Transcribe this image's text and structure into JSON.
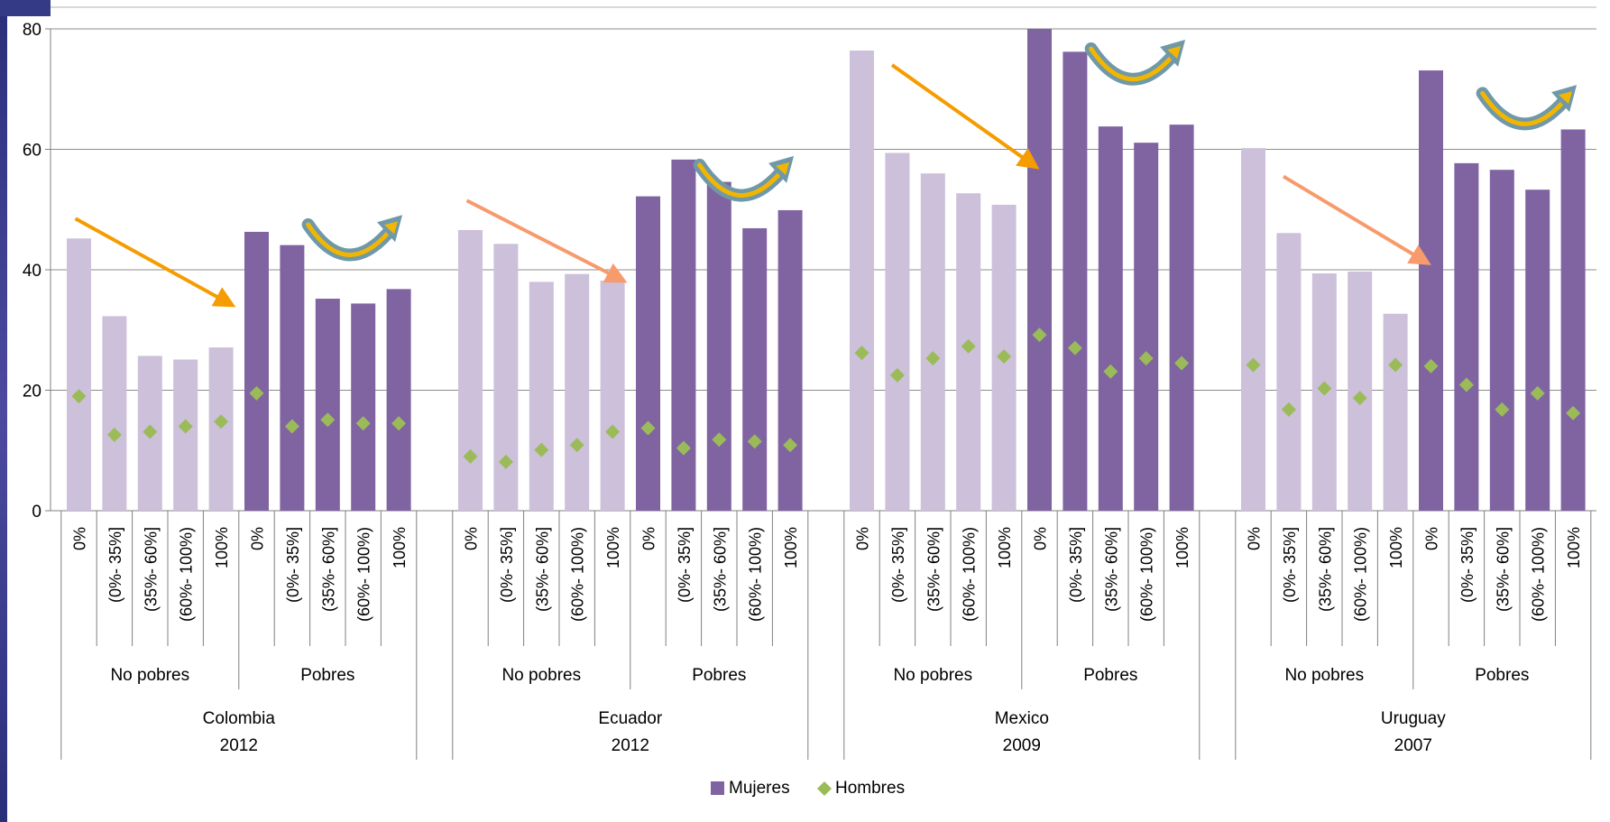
{
  "chart_data": {
    "type": "bar",
    "ylim": [
      0,
      80
    ],
    "yticks": [
      0,
      20,
      40,
      60,
      80
    ],
    "grid": true,
    "legend_position": "bottom",
    "series": [
      {
        "name": "Mujeres",
        "kind": "bar",
        "color": "#8064a2"
      },
      {
        "name": "Hombres",
        "kind": "marker",
        "color": "#9bbb59"
      }
    ],
    "countries": [
      {
        "name": "Colombia",
        "year": "2012",
        "groups": [
          {
            "label": "No pobres",
            "bars": [
              {
                "tick": "0%",
                "mujeres": 45.2,
                "hombres": 19
              },
              {
                "tick": "(0%- 35%]",
                "mujeres": 32.3,
                "hombres": 12.6
              },
              {
                "tick": "(35%- 60%]",
                "mujeres": 25.7,
                "hombres": 13.1
              },
              {
                "tick": "(60%- 100%)",
                "mujeres": 25.1,
                "hombres": 14
              },
              {
                "tick": "100%",
                "mujeres": 27.1,
                "hombres": 14.8
              }
            ]
          },
          {
            "label": "Pobres",
            "bars": [
              {
                "tick": "0%",
                "mujeres": 46.3,
                "hombres": 19.5
              },
              {
                "tick": "(0%- 35%]",
                "mujeres": 44.1,
                "hombres": 14
              },
              {
                "tick": "(35%- 60%]",
                "mujeres": 35.2,
                "hombres": 15.1
              },
              {
                "tick": "(60%- 100%)",
                "mujeres": 34.4,
                "hombres": 14.5
              },
              {
                "tick": "100%",
                "mujeres": 36.8,
                "hombres": 14.5
              }
            ]
          }
        ]
      },
      {
        "name": "Ecuador",
        "year": "2012",
        "groups": [
          {
            "label": "No pobres",
            "bars": [
              {
                "tick": "0%",
                "mujeres": 46.6,
                "hombres": 9
              },
              {
                "tick": "(0%- 35%]",
                "mujeres": 44.3,
                "hombres": 8.1
              },
              {
                "tick": "(35%- 60%]",
                "mujeres": 38,
                "hombres": 10.1
              },
              {
                "tick": "(60%- 100%)",
                "mujeres": 39.3,
                "hombres": 10.9
              },
              {
                "tick": "100%",
                "mujeres": 38.2,
                "hombres": 13.1
              }
            ]
          },
          {
            "label": "Pobres",
            "bars": [
              {
                "tick": "0%",
                "mujeres": 52.2,
                "hombres": 13.7
              },
              {
                "tick": "(0%- 35%]",
                "mujeres": 58.3,
                "hombres": 10.4
              },
              {
                "tick": "(35%- 60%]",
                "mujeres": 54.6,
                "hombres": 11.8
              },
              {
                "tick": "(60%- 100%)",
                "mujeres": 46.9,
                "hombres": 11.5
              },
              {
                "tick": "100%",
                "mujeres": 49.9,
                "hombres": 10.9
              }
            ]
          }
        ]
      },
      {
        "name": "Mexico",
        "year": "2009",
        "groups": [
          {
            "label": "No pobres",
            "bars": [
              {
                "tick": "0%",
                "mujeres": 76.4,
                "hombres": 26.2
              },
              {
                "tick": "(0%- 35%]",
                "mujeres": 59.4,
                "hombres": 22.5
              },
              {
                "tick": "(35%- 60%]",
                "mujeres": 56,
                "hombres": 25.3
              },
              {
                "tick": "(60%- 100%)",
                "mujeres": 52.7,
                "hombres": 27.3
              },
              {
                "tick": "100%",
                "mujeres": 50.8,
                "hombres": 25.6
              }
            ]
          },
          {
            "label": "Pobres",
            "bars": [
              {
                "tick": "0%",
                "mujeres": 80,
                "hombres": 29.2
              },
              {
                "tick": "(0%- 35%]",
                "mujeres": 76.2,
                "hombres": 27
              },
              {
                "tick": "(35%- 60%]",
                "mujeres": 63.8,
                "hombres": 23.1
              },
              {
                "tick": "(60%- 100%)",
                "mujeres": 61.1,
                "hombres": 25.3
              },
              {
                "tick": "100%",
                "mujeres": 64.1,
                "hombres": 24.5
              }
            ]
          }
        ]
      },
      {
        "name": "Uruguay",
        "year": "2007",
        "groups": [
          {
            "label": "No pobres",
            "bars": [
              {
                "tick": "0%",
                "mujeres": 60.2,
                "hombres": 24.2
              },
              {
                "tick": "(0%- 35%]",
                "mujeres": 46.1,
                "hombres": 16.8
              },
              {
                "tick": "(35%- 60%]",
                "mujeres": 39.4,
                "hombres": 20.3
              },
              {
                "tick": "(60%- 100%)",
                "mujeres": 39.7,
                "hombres": 18.7
              },
              {
                "tick": "100%",
                "mujeres": 32.7,
                "hombres": 24.2
              }
            ]
          },
          {
            "label": "Pobres",
            "bars": [
              {
                "tick": "0%",
                "mujeres": 73.1,
                "hombres": 24
              },
              {
                "tick": "(0%- 35%]",
                "mujeres": 57.7,
                "hombres": 20.9
              },
              {
                "tick": "(35%- 60%]",
                "mujeres": 56.6,
                "hombres": 16.8
              },
              {
                "tick": "(60%- 100%)",
                "mujeres": 53.3,
                "hombres": 19.5
              },
              {
                "tick": "100%",
                "mujeres": 63.3,
                "hombres": 16.2
              }
            ]
          }
        ]
      }
    ],
    "colors": {
      "no_pobres": "#ccc0da",
      "pobres": "#8064a2",
      "hombres": "#9bbb59",
      "arrow_orange": "#f59c00",
      "arrow_salmon": "#f79a6c",
      "curve_teal": "#6f98a8",
      "curve_gold": "#f2b600"
    },
    "annotations": {
      "arrows": [
        {
          "country": 0,
          "color": "orange",
          "from": [
            -0.1,
            48.5
          ],
          "to": [
            4.2,
            34.5
          ]
        },
        {
          "country": 1,
          "color": "salmon",
          "from": [
            -0.1,
            51.5
          ],
          "to": [
            4.2,
            38.5
          ]
        },
        {
          "country": 2,
          "color": "orange",
          "from": [
            0.85,
            74
          ],
          "to": [
            4.8,
            57.5
          ]
        },
        {
          "country": 3,
          "color": "salmon",
          "from": [
            0.85,
            55.5
          ],
          "to": [
            4.8,
            41.5
          ]
        }
      ],
      "curves": [
        {
          "country": 0,
          "from": [
            6.45,
            47.5
          ],
          "to": [
            9.05,
            48.2
          ]
        },
        {
          "country": 1,
          "from": [
            6.45,
            57.4
          ],
          "to": [
            9.05,
            58
          ]
        },
        {
          "country": 2,
          "from": [
            6.45,
            76.7
          ],
          "to": [
            9.05,
            77.3
          ]
        },
        {
          "country": 3,
          "from": [
            6.45,
            69.3
          ],
          "to": [
            9.05,
            69.8
          ]
        }
      ]
    }
  }
}
